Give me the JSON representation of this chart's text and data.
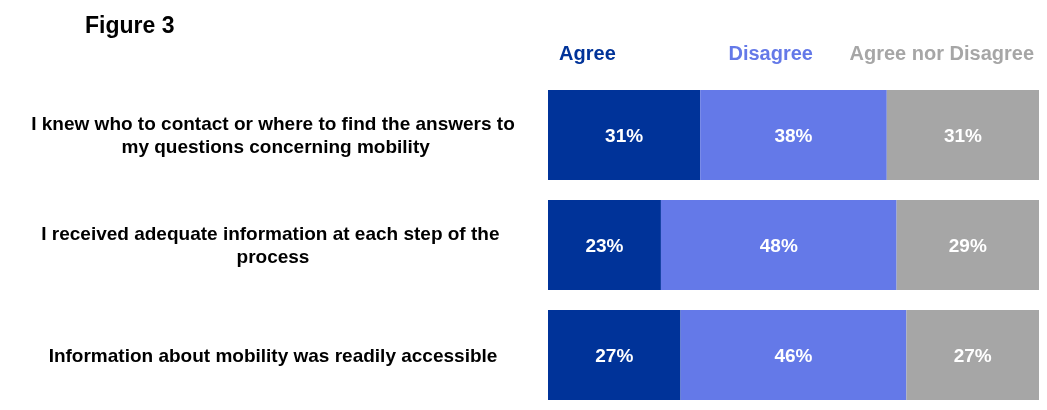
{
  "chart_data": {
    "type": "bar",
    "title": "Figure 3",
    "orientation": "horizontal",
    "stacked": true,
    "legend": "top",
    "categories": [
      "I knew who to contact or where to find the answers to my questions concerning mobility",
      "I received adequate information at each step of the process",
      "Information about mobility was readily accessible"
    ],
    "series": [
      {
        "name": "Agree",
        "color": "#003399",
        "values": [
          31,
          23,
          27
        ],
        "value_labels": [
          "31%",
          "23%",
          "27%"
        ]
      },
      {
        "name": "Disagree",
        "color": "#6479e8",
        "values": [
          38,
          48,
          46
        ],
        "value_labels": [
          "38%",
          "48%",
          "46%"
        ]
      },
      {
        "name": "Agree nor Disagree",
        "color": "#a6a6a6",
        "values": [
          31,
          29,
          27
        ],
        "value_labels": [
          "31%",
          "29%",
          "27%"
        ]
      }
    ]
  }
}
